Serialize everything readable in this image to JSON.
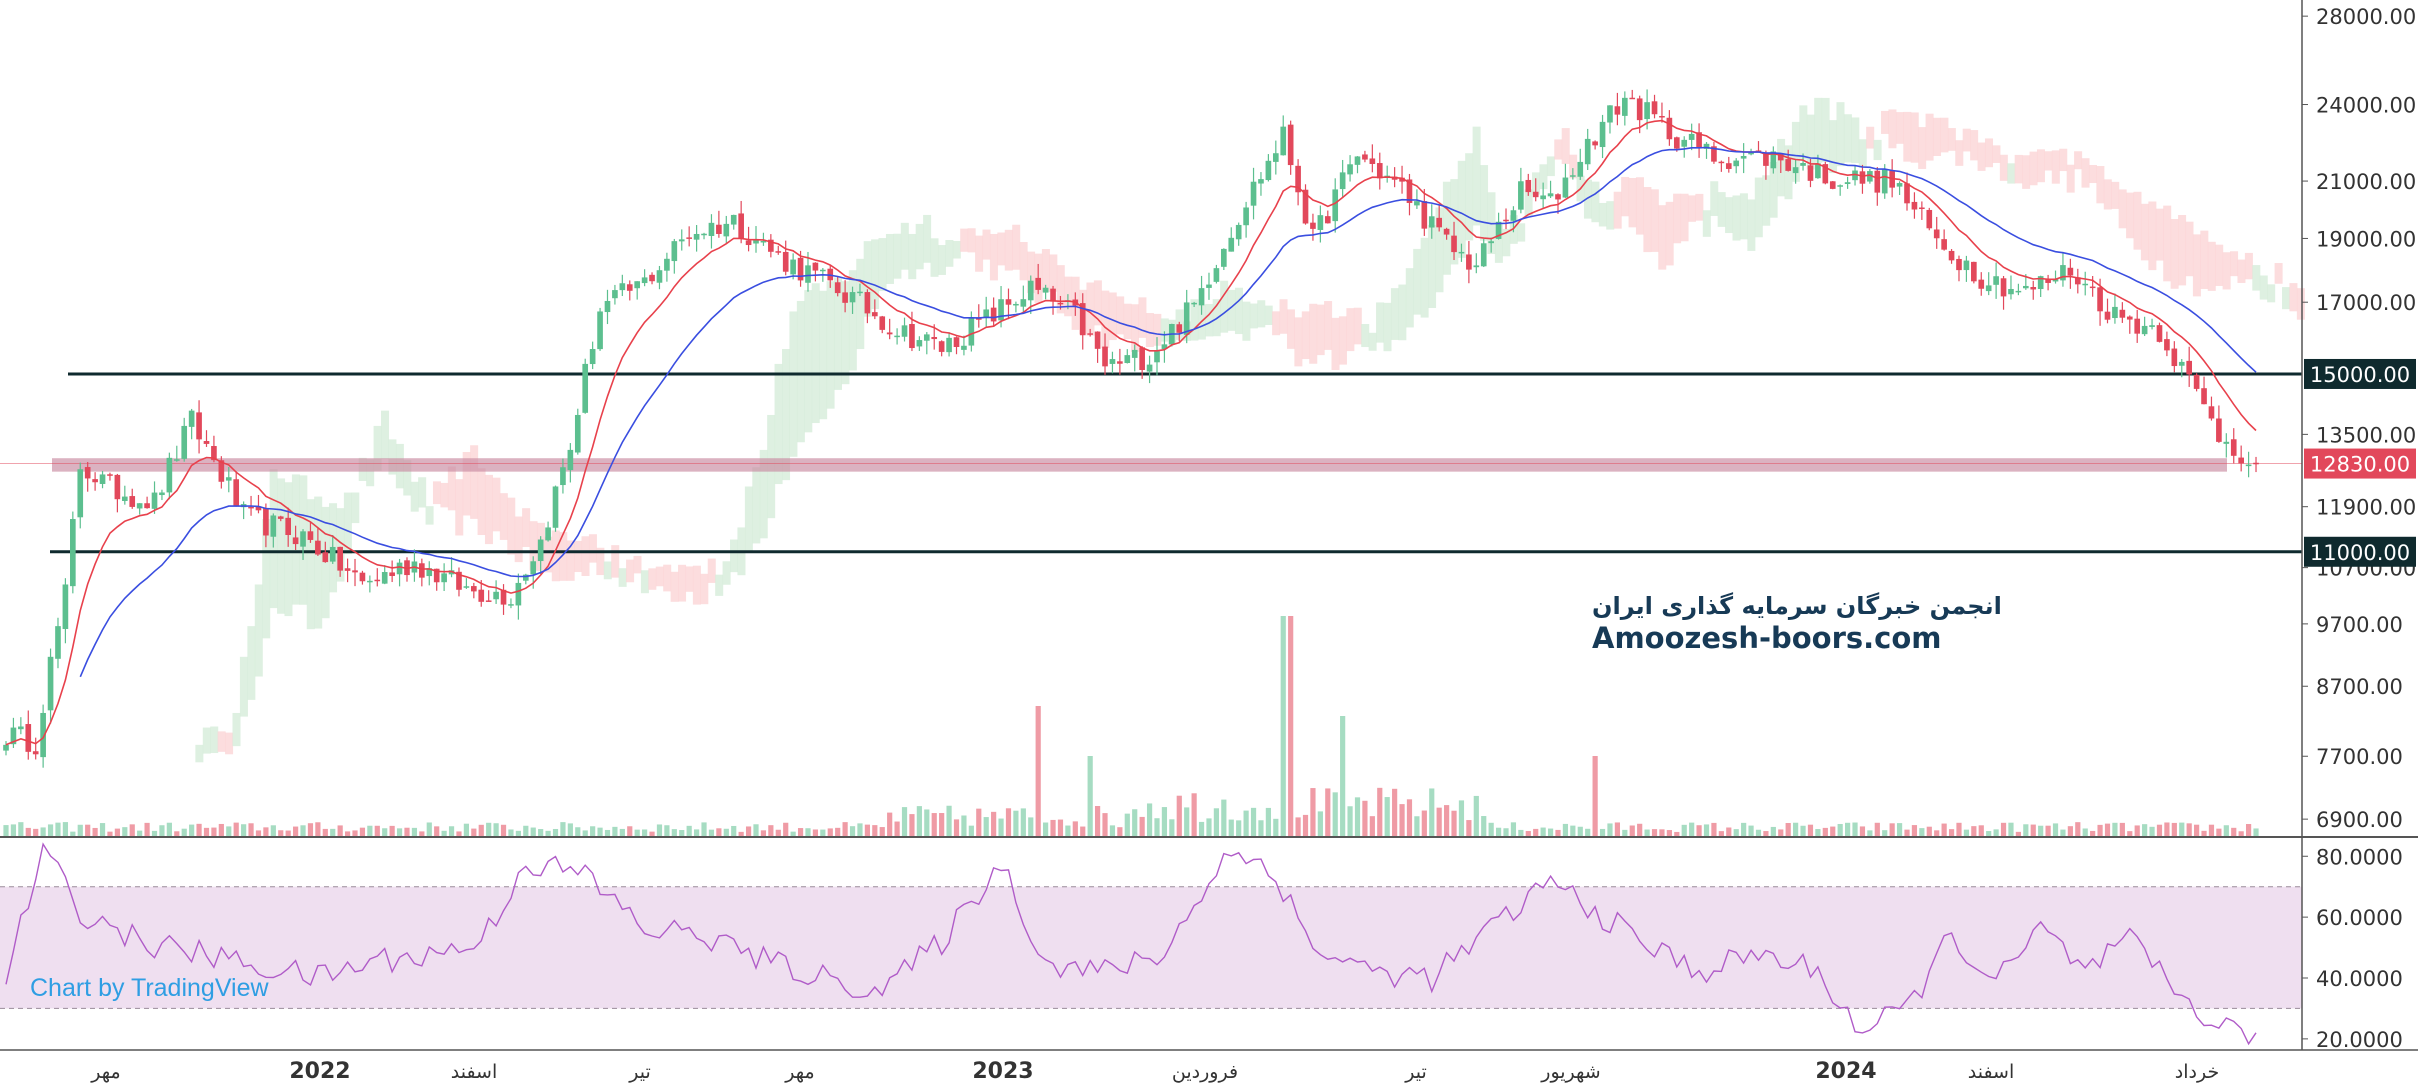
{
  "watermark": {
    "line1": "انجمن خبرگان سرمایه گذاری ایران",
    "line2": "Amoozesh-boors.com"
  },
  "credit": "Chart by TradingView",
  "colors": {
    "up": "#5cbf8f",
    "down": "#e2485b",
    "ema_fast": "#e8414c",
    "ema_slow": "#3a4ee0",
    "cloud_bull": "#d6ecd9",
    "cloud_bear": "#fbd4d6",
    "level_line": "#0f2a2e",
    "zone": "#c7889f",
    "rsi": "#b05cc8",
    "rsi_band": "#efdff0",
    "price_label": "#e2485b"
  },
  "chart_data": [
    {
      "type": "candlestick",
      "scale": "log",
      "ylim": [
        6700,
        28800
      ],
      "y_ticks": [
        6900,
        7700,
        8700,
        9700,
        10700,
        11900,
        13500,
        17000,
        19000,
        21000,
        24000,
        28000
      ],
      "y_tick_labels": [
        "6900.00",
        "7700.00",
        "8700.00",
        "9700.00",
        "10700.00",
        "11900.00",
        "13500.00",
        "17000.00",
        "19000.00",
        "21000.00",
        "24000.00",
        "28000.00"
      ],
      "x_labels": [
        "مهر",
        "2022",
        "اسفند",
        "تیر",
        "مهر",
        "2023",
        "فروردین",
        "تیر",
        "شهریور",
        "2024",
        "اسفند",
        "خرداد"
      ],
      "bold_x_labels": [
        "2022",
        "2023",
        "2024"
      ],
      "x_range_bars": 310,
      "anchors": [
        {
          "bar": 0,
          "price": 8000
        },
        {
          "bar": 4,
          "price": 7900
        },
        {
          "bar": 8,
          "price": 10200
        },
        {
          "bar": 10,
          "price": 12800
        },
        {
          "bar": 14,
          "price": 12300
        },
        {
          "bar": 20,
          "price": 12000
        },
        {
          "bar": 25,
          "price": 13800
        },
        {
          "bar": 32,
          "price": 11700
        },
        {
          "bar": 40,
          "price": 11300
        },
        {
          "bar": 48,
          "price": 10400
        },
        {
          "bar": 55,
          "price": 10800
        },
        {
          "bar": 62,
          "price": 10300
        },
        {
          "bar": 68,
          "price": 10200
        },
        {
          "bar": 72,
          "price": 11200
        },
        {
          "bar": 76,
          "price": 13200
        },
        {
          "bar": 80,
          "price": 16800
        },
        {
          "bar": 86,
          "price": 17600
        },
        {
          "bar": 92,
          "price": 19200
        },
        {
          "bar": 98,
          "price": 19600
        },
        {
          "bar": 104,
          "price": 18400
        },
        {
          "bar": 112,
          "price": 17400
        },
        {
          "bar": 120,
          "price": 16200
        },
        {
          "bar": 126,
          "price": 15700
        },
        {
          "bar": 132,
          "price": 16500
        },
        {
          "bar": 138,
          "price": 17400
        },
        {
          "bar": 144,
          "price": 16600
        },
        {
          "bar": 148,
          "price": 15200
        },
        {
          "bar": 154,
          "price": 15500
        },
        {
          "bar": 160,
          "price": 16900
        },
        {
          "bar": 166,
          "price": 19800
        },
        {
          "bar": 172,
          "price": 22700
        },
        {
          "bar": 176,
          "price": 18900
        },
        {
          "bar": 182,
          "price": 22000
        },
        {
          "bar": 188,
          "price": 20700
        },
        {
          "bar": 194,
          "price": 18800
        },
        {
          "bar": 198,
          "price": 18100
        },
        {
          "bar": 204,
          "price": 20600
        },
        {
          "bar": 208,
          "price": 20200
        },
        {
          "bar": 214,
          "price": 22800
        },
        {
          "bar": 218,
          "price": 24300
        },
        {
          "bar": 224,
          "price": 22900
        },
        {
          "bar": 230,
          "price": 21900
        },
        {
          "bar": 238,
          "price": 21900
        },
        {
          "bar": 246,
          "price": 21100
        },
        {
          "bar": 254,
          "price": 21000
        },
        {
          "bar": 260,
          "price": 18900
        },
        {
          "bar": 266,
          "price": 17800
        },
        {
          "bar": 272,
          "price": 17300
        },
        {
          "bar": 278,
          "price": 18000
        },
        {
          "bar": 284,
          "price": 16600
        },
        {
          "bar": 290,
          "price": 16200
        },
        {
          "bar": 294,
          "price": 14800
        },
        {
          "bar": 298,
          "price": 13500
        },
        {
          "bar": 303,
          "price": 12830
        }
      ],
      "horizontal_levels": [
        {
          "price": 15000,
          "label": "15000.00"
        },
        {
          "price": 11000,
          "label": "11000.00"
        }
      ],
      "support_zone": [
        12650,
        12950
      ],
      "last_price": {
        "value": 12830,
        "label": "12830.00"
      },
      "indicators": [
        "EMA fast",
        "EMA slow",
        "Ichimoku cloud",
        "Volume"
      ]
    },
    {
      "type": "line",
      "indicator": "RSI",
      "ylim": [
        17,
        86
      ],
      "y_ticks": [
        20,
        40,
        60,
        80
      ],
      "y_tick_labels": [
        "20.0000",
        "40.0000",
        "60.0000",
        "80.0000"
      ],
      "band": [
        30,
        70
      ],
      "anchors": [
        {
          "bar": 0,
          "value": 40
        },
        {
          "bar": 5,
          "value": 82
        },
        {
          "bar": 10,
          "value": 62
        },
        {
          "bar": 18,
          "value": 52
        },
        {
          "bar": 26,
          "value": 48
        },
        {
          "bar": 34,
          "value": 44
        },
        {
          "bar": 42,
          "value": 40
        },
        {
          "bar": 50,
          "value": 46
        },
        {
          "bar": 58,
          "value": 48
        },
        {
          "bar": 64,
          "value": 52
        },
        {
          "bar": 70,
          "value": 78
        },
        {
          "bar": 78,
          "value": 74
        },
        {
          "bar": 86,
          "value": 56
        },
        {
          "bar": 94,
          "value": 54
        },
        {
          "bar": 102,
          "value": 46
        },
        {
          "bar": 110,
          "value": 40
        },
        {
          "bar": 118,
          "value": 36
        },
        {
          "bar": 126,
          "value": 52
        },
        {
          "bar": 134,
          "value": 78
        },
        {
          "bar": 140,
          "value": 45
        },
        {
          "bar": 148,
          "value": 42
        },
        {
          "bar": 156,
          "value": 48
        },
        {
          "bar": 164,
          "value": 80
        },
        {
          "bar": 170,
          "value": 78
        },
        {
          "bar": 176,
          "value": 50
        },
        {
          "bar": 184,
          "value": 42
        },
        {
          "bar": 192,
          "value": 40
        },
        {
          "bar": 200,
          "value": 56
        },
        {
          "bar": 208,
          "value": 72
        },
        {
          "bar": 214,
          "value": 62
        },
        {
          "bar": 220,
          "value": 52
        },
        {
          "bar": 228,
          "value": 42
        },
        {
          "bar": 236,
          "value": 48
        },
        {
          "bar": 244,
          "value": 42
        },
        {
          "bar": 250,
          "value": 22
        },
        {
          "bar": 256,
          "value": 30
        },
        {
          "bar": 262,
          "value": 54
        },
        {
          "bar": 268,
          "value": 38
        },
        {
          "bar": 274,
          "value": 56
        },
        {
          "bar": 280,
          "value": 42
        },
        {
          "bar": 286,
          "value": 52
        },
        {
          "bar": 292,
          "value": 36
        },
        {
          "bar": 298,
          "value": 24
        },
        {
          "bar": 303,
          "value": 22
        }
      ]
    }
  ]
}
